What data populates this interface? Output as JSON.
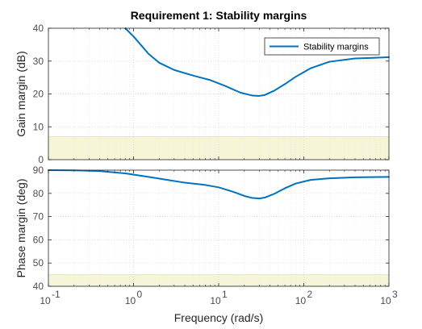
{
  "chart_data": [
    {
      "type": "line",
      "title": "Requirement 1: Stability margins",
      "xlabel": "",
      "ylabel": "Gain margin (dB)",
      "xscale": "log",
      "xlim": [
        0.1,
        1000
      ],
      "ylim": [
        0,
        40
      ],
      "yticks": [
        "0",
        "10",
        "20",
        "30",
        "40"
      ],
      "grid": true,
      "legend": {
        "position": "top-right",
        "entries": [
          "Stability margins"
        ]
      },
      "shaded_region": {
        "y_from": 0,
        "y_to": 7,
        "color": "#f7f5d8",
        "edge_color": "#e9e6b8"
      },
      "series": [
        {
          "name": "Stability margins",
          "color": "#0072bd",
          "x": [
            0.8,
            1,
            1.5,
            2,
            3,
            5,
            8,
            12,
            18,
            25,
            30,
            35,
            45,
            60,
            80,
            120,
            200,
            400,
            700,
            1000
          ],
          "values": [
            40,
            37.5,
            32.2,
            29.5,
            27.3,
            25.6,
            24.2,
            22.4,
            20.4,
            19.5,
            19.4,
            19.7,
            21.0,
            23.0,
            25.2,
            27.8,
            29.8,
            30.8,
            31.0,
            31.2
          ]
        }
      ]
    },
    {
      "type": "line",
      "title": "",
      "xlabel": "Frequency  (rad/s)",
      "ylabel": "Phase margin (deg)",
      "xscale": "log",
      "xlim": [
        0.1,
        1000
      ],
      "ylim": [
        40,
        90
      ],
      "xticks": [
        {
          "base": "10",
          "exp": "-1"
        },
        {
          "base": "10",
          "exp": "0"
        },
        {
          "base": "10",
          "exp": "1"
        },
        {
          "base": "10",
          "exp": "2"
        },
        {
          "base": "10",
          "exp": "3"
        }
      ],
      "yticks": [
        "40",
        "50",
        "60",
        "70",
        "80",
        "90"
      ],
      "grid": true,
      "shaded_region": {
        "y_from": 40,
        "y_to": 45,
        "color": "#f7f5d8",
        "edge_color": "#e9e6b8"
      },
      "series": [
        {
          "color": "#0072bd",
          "x": [
            0.1,
            0.2,
            0.4,
            0.8,
            1.5,
            2.5,
            4,
            7,
            10,
            15,
            20,
            25,
            30,
            35,
            45,
            60,
            80,
            120,
            200,
            400,
            1000
          ],
          "values": [
            90,
            89.9,
            89.6,
            88.6,
            87.1,
            85.8,
            84.6,
            83.6,
            82.6,
            80.6,
            78.9,
            78.0,
            77.8,
            78.2,
            79.8,
            82.2,
            84.2,
            85.8,
            86.5,
            86.9,
            87.1
          ]
        }
      ]
    }
  ]
}
